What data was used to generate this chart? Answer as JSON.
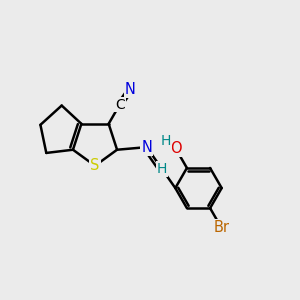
{
  "background_color": "#ebebeb",
  "bond_color": "#000000",
  "bond_lw": 1.8,
  "atom_colors": {
    "S": "#cccc00",
    "N": "#0000dd",
    "O": "#dd0000",
    "Br": "#bb6600",
    "C": "#000000",
    "H": "#008888"
  },
  "figsize": [
    3.0,
    3.0
  ],
  "dpi": 100
}
